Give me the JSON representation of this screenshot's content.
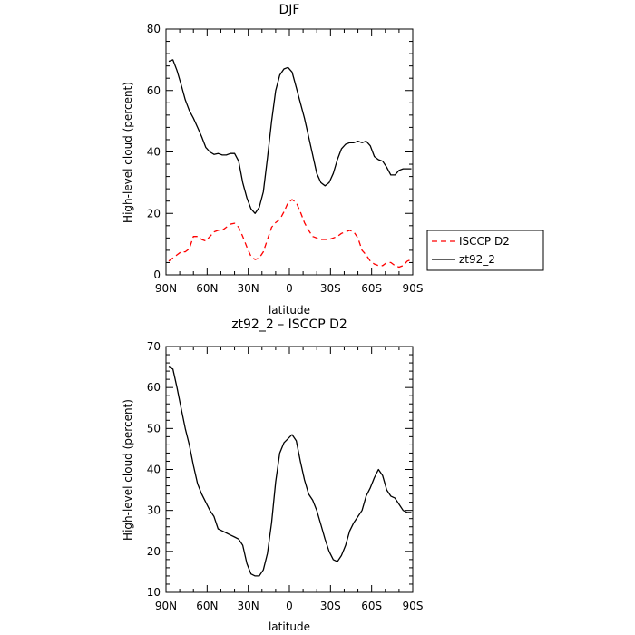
{
  "chart_data": [
    {
      "type": "line",
      "title": "DJF",
      "xlabel": "latitude",
      "ylabel": "High-level cloud (percent)",
      "x_ticklabels": [
        "90N",
        "60N",
        "30N",
        "0",
        "30S",
        "60S",
        "90S"
      ],
      "x_tickvalues": [
        90,
        60,
        30,
        0,
        -30,
        -60,
        -90
      ],
      "xlim": [
        90,
        -90
      ],
      "ylim": [
        0,
        80
      ],
      "yticks": [
        0,
        20,
        40,
        60,
        80
      ],
      "legend": {
        "placement": "right-outside"
      },
      "series": [
        {
          "name": "ISCCP D2",
          "color": "#ff0000",
          "dash": "dashed",
          "x": [
            88,
            85,
            82,
            79,
            76,
            73,
            70,
            67,
            64,
            61,
            58,
            55,
            52,
            49,
            46,
            43,
            40,
            37,
            34,
            31,
            28,
            25,
            22,
            19,
            16,
            13,
            10,
            7,
            4,
            1,
            -2,
            -5,
            -8,
            -11,
            -14,
            -17,
            -20,
            -23,
            -26,
            -29,
            -32,
            -35,
            -38,
            -41,
            -44,
            -47,
            -50,
            -53,
            -56,
            -59,
            -62,
            -65,
            -68,
            -71,
            -74,
            -77,
            -80,
            -83,
            -86,
            -89
          ],
          "y": [
            4.5,
            5.5,
            6.5,
            7.5,
            7.5,
            8.5,
            12.5,
            12.5,
            11.5,
            11.0,
            12.5,
            14.0,
            14.5,
            14.5,
            15.5,
            16.5,
            16.8,
            15.5,
            12.5,
            9.0,
            6.0,
            5.0,
            5.5,
            7.5,
            11.5,
            15.5,
            17.0,
            18.0,
            20.5,
            23.5,
            24.5,
            23.5,
            20.5,
            17.0,
            14.5,
            12.5,
            12.0,
            11.5,
            11.5,
            11.5,
            12.0,
            12.5,
            13.5,
            14.0,
            14.5,
            14.0,
            12.0,
            8.0,
            6.5,
            4.5,
            3.5,
            3.0,
            3.0,
            4.0,
            4.0,
            3.0,
            2.5,
            3.0,
            4.5,
            5.0
          ]
        },
        {
          "name": "zt92_2",
          "color": "#000000",
          "dash": "solid",
          "x": [
            88,
            85,
            82,
            79,
            76,
            73,
            70,
            67,
            64,
            61,
            58,
            55,
            52,
            49,
            46,
            43,
            40,
            37,
            34,
            31,
            28,
            25,
            22,
            19,
            16,
            13,
            10,
            7,
            4,
            1,
            -2,
            -5,
            -8,
            -11,
            -14,
            -17,
            -20,
            -23,
            -26,
            -29,
            -32,
            -35,
            -38,
            -41,
            -44,
            -47,
            -50,
            -53,
            -56,
            -59,
            -62,
            -65,
            -68,
            -71,
            -74,
            -77,
            -80,
            -83,
            -86,
            -89
          ],
          "y": [
            69.5,
            70.0,
            66.5,
            62.0,
            57.0,
            53.5,
            51.0,
            48.0,
            45.0,
            41.5,
            40.0,
            39.2,
            39.5,
            39.0,
            39.0,
            39.5,
            39.5,
            37.0,
            30.0,
            25.0,
            21.5,
            20.0,
            22.0,
            27.0,
            38.0,
            50.0,
            60.0,
            65.0,
            67.0,
            67.5,
            66.0,
            61.0,
            56.0,
            51.0,
            45.0,
            39.0,
            33.0,
            30.0,
            29.0,
            30.0,
            33.0,
            37.5,
            41.0,
            42.5,
            43.0,
            43.0,
            43.5,
            43.0,
            43.5,
            42.0,
            38.5,
            37.5,
            37.0,
            35.0,
            32.5,
            32.5,
            34.0,
            34.5,
            34.5,
            34.5
          ]
        }
      ]
    },
    {
      "type": "line",
      "title": "zt92_2 – ISCCP D2",
      "xlabel": "latitude",
      "ylabel": "High-level cloud (percent)",
      "x_ticklabels": [
        "90N",
        "60N",
        "30N",
        "0",
        "30S",
        "60S",
        "90S"
      ],
      "x_tickvalues": [
        90,
        60,
        30,
        0,
        -30,
        -60,
        -90
      ],
      "xlim": [
        90,
        -90
      ],
      "ylim": [
        10,
        70
      ],
      "yticks": [
        10,
        20,
        30,
        40,
        50,
        60,
        70
      ],
      "series": [
        {
          "color": "#000000",
          "dash": "solid",
          "x": [
            88,
            85,
            82,
            79,
            76,
            73,
            70,
            67,
            64,
            61,
            58,
            55,
            52,
            49,
            46,
            43,
            40,
            37,
            34,
            31,
            28,
            25,
            22,
            19,
            16,
            13,
            10,
            7,
            4,
            1,
            -2,
            -5,
            -8,
            -11,
            -14,
            -17,
            -20,
            -23,
            -26,
            -29,
            -32,
            -35,
            -38,
            -41,
            -44,
            -47,
            -50,
            -53,
            -56,
            -59,
            -62,
            -65,
            -68,
            -71,
            -74,
            -77,
            -80,
            -83,
            -86,
            -89
          ],
          "y": [
            65.0,
            64.5,
            60.0,
            55.0,
            50.0,
            46.0,
            41.0,
            36.5,
            34.0,
            32.0,
            30.0,
            28.5,
            25.5,
            25.0,
            24.5,
            24.0,
            23.5,
            23.0,
            21.5,
            17.0,
            14.5,
            14.0,
            14.0,
            15.5,
            19.5,
            27.0,
            37.0,
            44.0,
            46.5,
            47.5,
            48.5,
            47.0,
            42.0,
            37.5,
            34.0,
            32.5,
            30.0,
            26.5,
            23.0,
            20.0,
            18.0,
            17.5,
            19.0,
            21.5,
            25.0,
            27.0,
            28.5,
            30.0,
            33.5,
            35.5,
            38.0,
            40.0,
            38.5,
            35.0,
            33.5,
            33.0,
            31.5,
            30.0,
            29.5,
            29.5
          ]
        }
      ]
    }
  ]
}
